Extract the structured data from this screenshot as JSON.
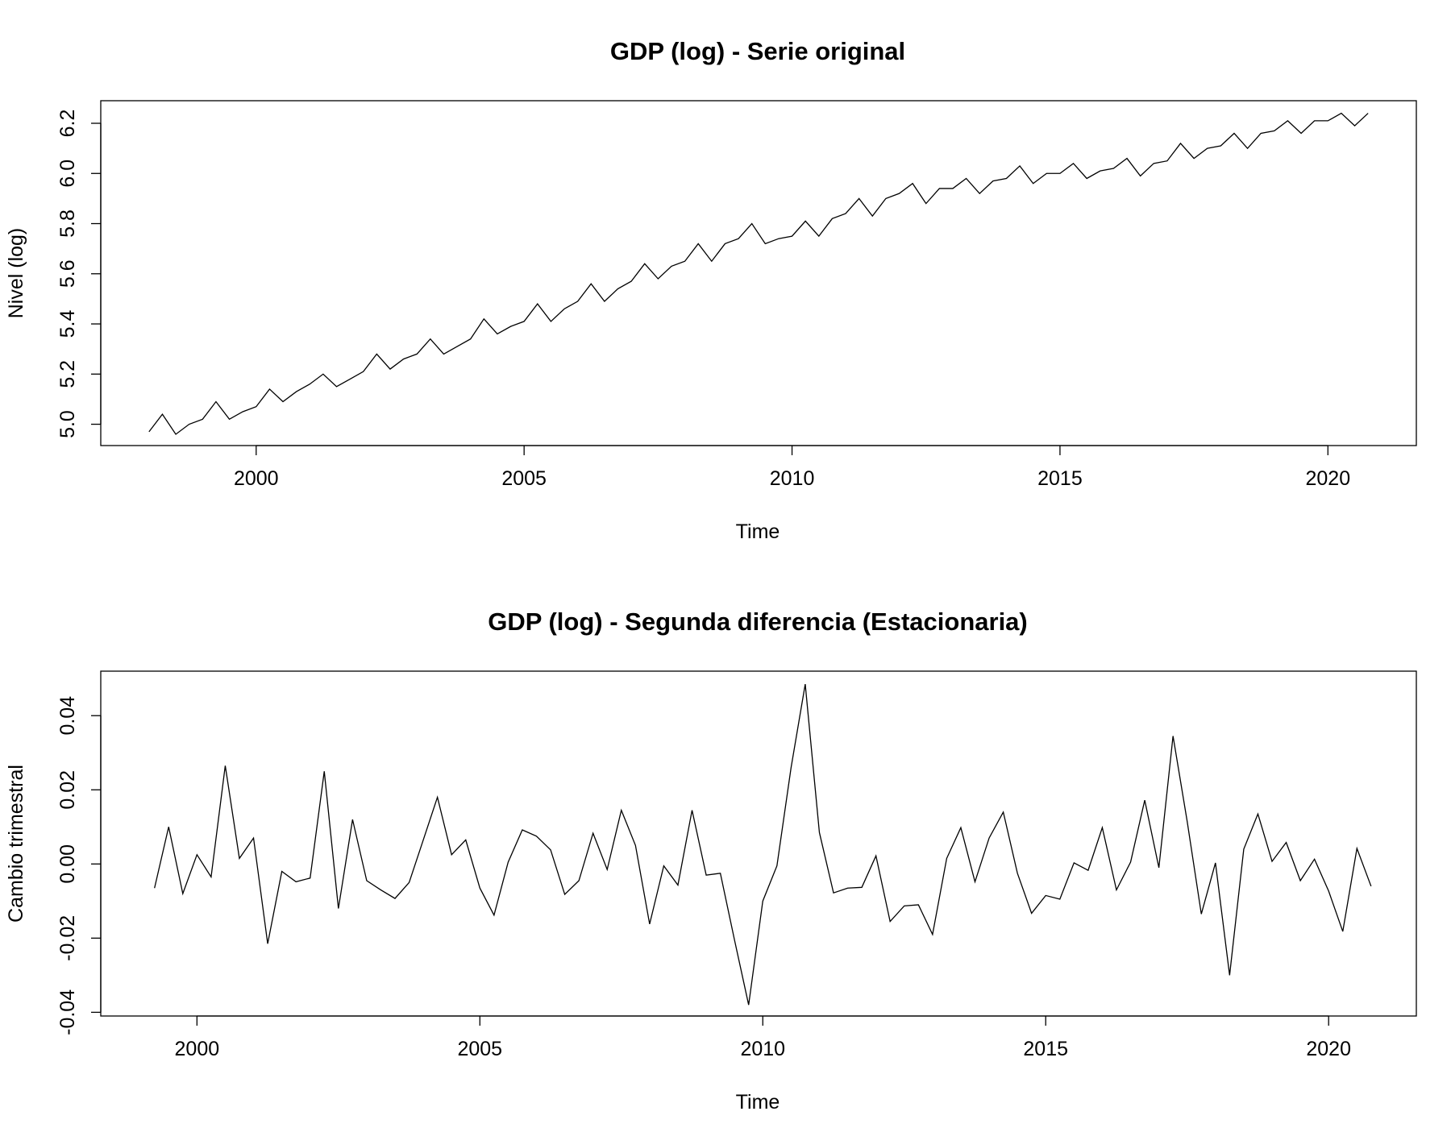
{
  "chart_data": [
    {
      "type": "line",
      "title": "GDP (log) - Serie original",
      "xlabel": "Time",
      "ylabel": "Nivel (log)",
      "xlim": [
        1997.1,
        2021.65
      ],
      "ylim": [
        4.915,
        6.29
      ],
      "xticks": [
        2000,
        2005,
        2010,
        2015,
        2020
      ],
      "xtick_labels": [
        "2000",
        "2005",
        "2010",
        "2015",
        "2020"
      ],
      "yticks": [
        5.0,
        5.2,
        5.4,
        5.6,
        5.8,
        6.0,
        6.2
      ],
      "ytick_labels": [
        "5.0",
        "5.2",
        "5.4",
        "5.6",
        "5.8",
        "6.0",
        "6.2"
      ],
      "x_start": 1998.0,
      "x_step": 0.25,
      "grid": false,
      "color": "#000000",
      "series": [
        {
          "values": [
            4.97,
            5.04,
            4.96,
            5.0,
            5.02,
            5.09,
            5.02,
            5.05,
            5.07,
            5.14,
            5.09,
            5.13,
            5.16,
            5.2,
            5.15,
            5.18,
            5.21,
            5.28,
            5.22,
            5.26,
            5.28,
            5.34,
            5.28,
            5.31,
            5.34,
            5.42,
            5.36,
            5.39,
            5.41,
            5.48,
            5.41,
            5.46,
            5.49,
            5.56,
            5.49,
            5.54,
            5.57,
            5.64,
            5.58,
            5.63,
            5.65,
            5.72,
            5.65,
            5.72,
            5.74,
            5.8,
            5.72,
            5.74,
            5.75,
            5.81,
            5.75,
            5.82,
            5.84,
            5.9,
            5.83,
            5.9,
            5.92,
            5.96,
            5.88,
            5.94,
            5.94,
            5.98,
            5.92,
            5.97,
            5.98,
            6.03,
            5.96,
            6.0,
            6.0,
            6.04,
            5.98,
            6.01,
            6.02,
            6.06,
            5.99,
            6.04,
            6.05,
            6.12,
            6.06,
            6.1,
            6.11,
            6.16,
            6.1,
            6.16,
            6.17,
            6.21,
            6.16,
            6.21,
            6.21,
            6.24,
            6.19,
            6.24
          ]
        }
      ]
    },
    {
      "type": "line",
      "title": "GDP (log) - Segunda diferencia (Estacionaria)",
      "xlabel": "Time",
      "ylabel": "Cambio trimestral",
      "xlim": [
        1998.3,
        2021.55
      ],
      "ylim": [
        -0.041,
        0.052
      ],
      "xticks": [
        2000,
        2005,
        2010,
        2015,
        2020
      ],
      "xtick_labels": [
        "2000",
        "2005",
        "2010",
        "2015",
        "2020"
      ],
      "yticks": [
        -0.04,
        -0.02,
        0.0,
        0.02,
        0.04
      ],
      "ytick_labels": [
        "-0.04",
        "-0.02",
        "0.00",
        "0.02",
        "0.04"
      ],
      "x_start": 1999.25,
      "x_step": 0.25,
      "grid": false,
      "color": "#000000",
      "series": [
        {
          "values": [
            -0.0065,
            0.01,
            -0.008,
            0.0025,
            -0.0035,
            0.0265,
            0.0015,
            0.007,
            -0.0215,
            -0.002,
            -0.0048,
            -0.0038,
            0.025,
            -0.012,
            0.012,
            -0.0045,
            -0.007,
            -0.0093,
            -0.005,
            0.0065,
            0.018,
            0.0025,
            0.0065,
            -0.0065,
            -0.0138,
            0.0005,
            0.0092,
            0.0075,
            0.0038,
            -0.0082,
            -0.0045,
            0.0083,
            -0.0015,
            0.0145,
            0.005,
            -0.0162,
            -0.0005,
            -0.0057,
            0.0145,
            -0.003,
            -0.0025,
            -0.0205,
            -0.038,
            -0.01,
            -0.0005,
            0.026,
            0.0485,
            0.0085,
            -0.0078,
            -0.0065,
            -0.0063,
            0.0022,
            -0.0155,
            -0.0113,
            -0.011,
            -0.019,
            0.0015,
            0.0098,
            -0.0048,
            0.007,
            0.014,
            -0.0025,
            -0.0133,
            -0.0085,
            -0.0095,
            0.0003,
            -0.0017,
            0.0098,
            -0.007,
            0.0005,
            0.0172,
            -0.001,
            0.0345,
            0.0115,
            -0.0135,
            0.0003,
            -0.03,
            0.004,
            0.0135,
            0.0007,
            0.0058,
            -0.0045,
            0.0013,
            -0.0073,
            -0.0182,
            0.0042,
            -0.006
          ]
        }
      ]
    }
  ]
}
